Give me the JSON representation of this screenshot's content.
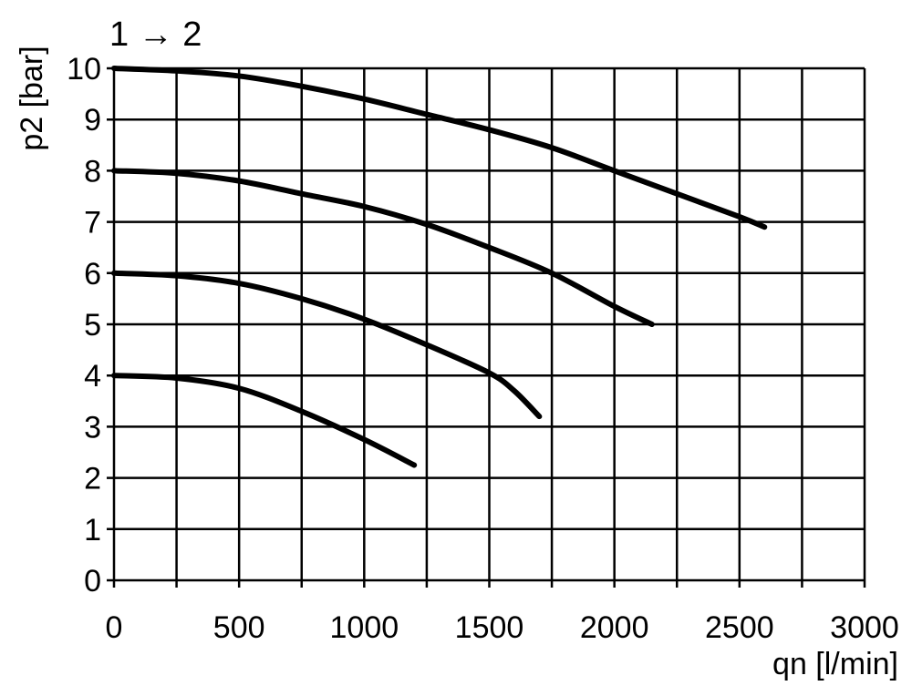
{
  "chart_data": {
    "type": "line",
    "title": "1 → 2",
    "xlabel": "qn [l/min]",
    "ylabel": "p2 [bar]",
    "xlim": [
      0,
      3000
    ],
    "ylim": [
      0,
      10
    ],
    "x_ticks": [
      0,
      500,
      1000,
      1500,
      2000,
      2500,
      3000
    ],
    "y_ticks": [
      0,
      1,
      2,
      3,
      4,
      5,
      6,
      7,
      8,
      9,
      10
    ],
    "grid": true,
    "line_color": "#000000",
    "series": [
      {
        "x": [
          0,
          250,
          500,
          750,
          1000,
          1250,
          1500,
          1750,
          2000,
          2250,
          2500,
          2600
        ],
        "y": [
          10,
          9.95,
          9.85,
          9.65,
          9.4,
          9.1,
          8.8,
          8.45,
          8.0,
          7.55,
          7.1,
          6.9
        ]
      },
      {
        "x": [
          0,
          250,
          500,
          750,
          1000,
          1250,
          1500,
          1750,
          2000,
          2150
        ],
        "y": [
          8,
          7.95,
          7.8,
          7.55,
          7.3,
          6.95,
          6.5,
          6.0,
          5.35,
          5.0
        ]
      },
      {
        "x": [
          0,
          250,
          500,
          750,
          1000,
          1250,
          1500,
          1600,
          1700
        ],
        "y": [
          6,
          5.95,
          5.8,
          5.5,
          5.1,
          4.6,
          4.05,
          3.7,
          3.2
        ]
      },
      {
        "x": [
          0,
          250,
          500,
          750,
          1000,
          1200
        ],
        "y": [
          4,
          3.95,
          3.75,
          3.3,
          2.75,
          2.25
        ]
      }
    ]
  }
}
